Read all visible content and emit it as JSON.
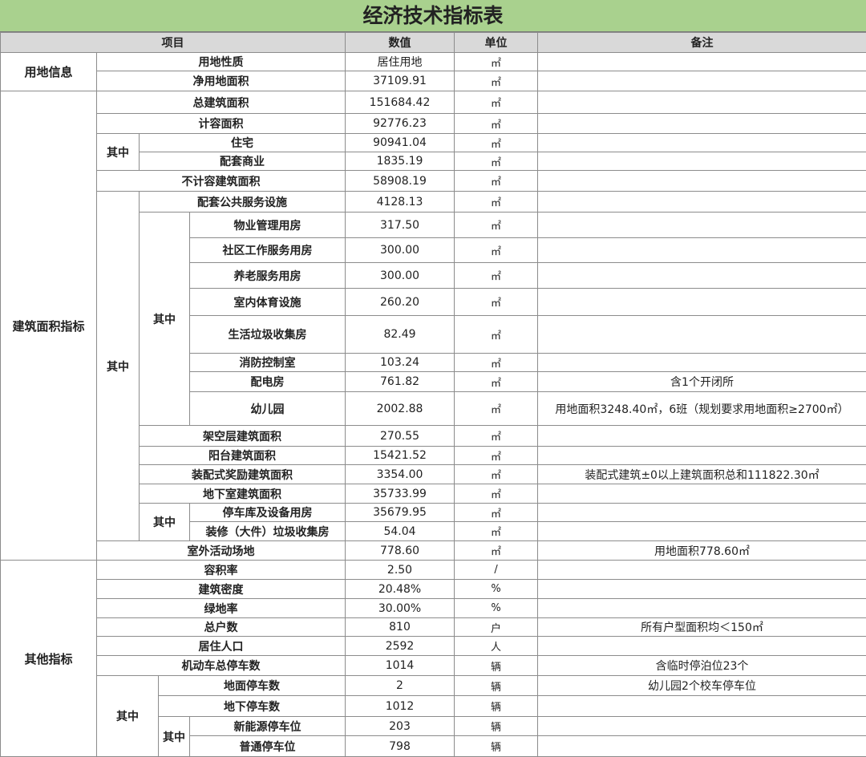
{
  "title": "经济技术指标表",
  "headers": {
    "item": "项目",
    "value": "数值",
    "unit": "单位",
    "note": "备注"
  },
  "groups": {
    "land": "用地信息",
    "building": "建筑面积指标",
    "other": "其他指标",
    "among": "其中"
  },
  "rows": [
    {
      "label": "用地性质",
      "value": "居住用地",
      "unit": "㎡",
      "note": ""
    },
    {
      "label": "净用地面积",
      "value": "37109.91",
      "unit": "㎡",
      "note": ""
    },
    {
      "label": "总建筑面积",
      "value": "151684.42",
      "unit": "㎡",
      "note": ""
    },
    {
      "label": "计容面积",
      "value": "92776.23",
      "unit": "㎡",
      "note": ""
    },
    {
      "label": "住宅",
      "value": "90941.04",
      "unit": "㎡",
      "note": ""
    },
    {
      "label": "配套商业",
      "value": "1835.19",
      "unit": "㎡",
      "note": ""
    },
    {
      "label": "不计容建筑面积",
      "value": "58908.19",
      "unit": "㎡",
      "note": ""
    },
    {
      "label": "配套公共服务设施",
      "value": "4128.13",
      "unit": "㎡",
      "note": ""
    },
    {
      "label": "物业管理用房",
      "value": "317.50",
      "unit": "㎡",
      "note": ""
    },
    {
      "label": "社区工作服务用房",
      "value": "300.00",
      "unit": "㎡",
      "note": ""
    },
    {
      "label": "养老服务用房",
      "value": "300.00",
      "unit": "㎡",
      "note": ""
    },
    {
      "label": "室内体育设施",
      "value": "260.20",
      "unit": "㎡",
      "note": ""
    },
    {
      "label": "生活垃圾收集房",
      "value": "82.49",
      "unit": "㎡",
      "note": ""
    },
    {
      "label": "消防控制室",
      "value": "103.24",
      "unit": "㎡",
      "note": ""
    },
    {
      "label": "配电房",
      "value": "761.82",
      "unit": "㎡",
      "note": "含1个开闭所"
    },
    {
      "label": "幼儿园",
      "value": "2002.88",
      "unit": "㎡",
      "note": "用地面积3248.40㎡，6班（规划要求用地面积≥2700㎡）"
    },
    {
      "label": "架空层建筑面积",
      "value": "270.55",
      "unit": "㎡",
      "note": ""
    },
    {
      "label": "阳台建筑面积",
      "value": "15421.52",
      "unit": "㎡",
      "note": ""
    },
    {
      "label": "装配式奖励建筑面积",
      "value": "3354.00",
      "unit": "㎡",
      "note": "装配式建筑±0以上建筑面积总和111822.30㎡"
    },
    {
      "label": "地下室建筑面积",
      "value": "35733.99",
      "unit": "㎡",
      "note": ""
    },
    {
      "label": "停车库及设备用房",
      "value": "35679.95",
      "unit": "㎡",
      "note": ""
    },
    {
      "label": "装修（大件）垃圾收集房",
      "value": "54.04",
      "unit": "㎡",
      "note": ""
    },
    {
      "label": "室外活动场地",
      "value": "778.60",
      "unit": "㎡",
      "note": "用地面积778.60㎡"
    },
    {
      "label": "容积率",
      "value": "2.50",
      "unit": "/",
      "note": ""
    },
    {
      "label": "建筑密度",
      "value": "20.48%",
      "unit": "%",
      "note": ""
    },
    {
      "label": "绿地率",
      "value": "30.00%",
      "unit": "%",
      "note": ""
    },
    {
      "label": "总户数",
      "value": "810",
      "unit": "户",
      "note": "所有户型面积均＜150㎡"
    },
    {
      "label": "居住人口",
      "value": "2592",
      "unit": "人",
      "note": ""
    },
    {
      "label": "机动车总停车数",
      "value": "1014",
      "unit": "辆",
      "note": "含临时停泊位23个"
    },
    {
      "label": "地面停车数",
      "value": "2",
      "unit": "辆",
      "note": "幼儿园2个校车停车位"
    },
    {
      "label": "地下停车数",
      "value": "1012",
      "unit": "辆",
      "note": ""
    },
    {
      "label": "新能源停车位",
      "value": "203",
      "unit": "辆",
      "note": ""
    },
    {
      "label": "普通停车位",
      "value": "798",
      "unit": "辆",
      "note": ""
    }
  ]
}
